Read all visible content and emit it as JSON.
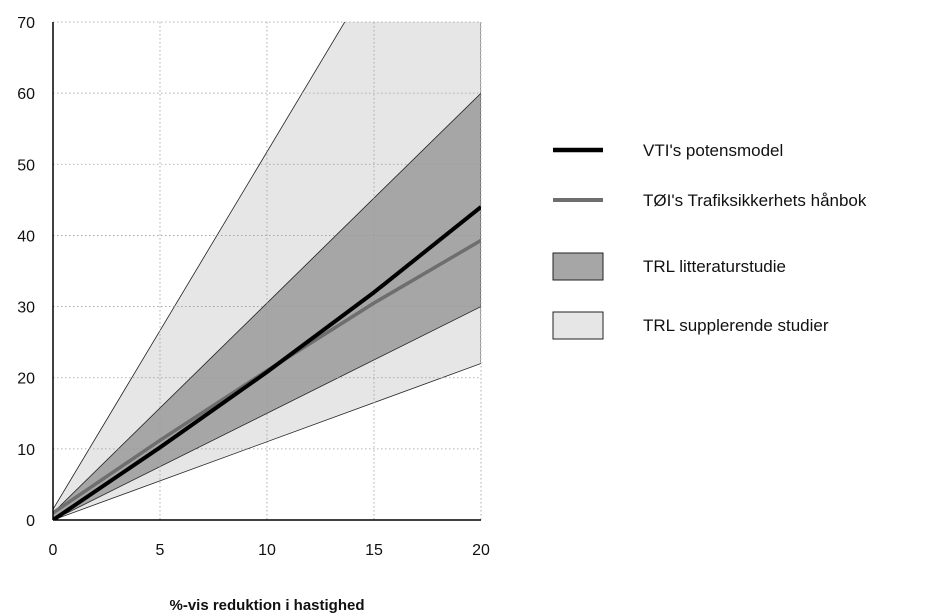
{
  "chart_data": {
    "type": "line",
    "title": "",
    "xlabel": "%-vis reduktion i hastighed",
    "ylabel": "",
    "xlim": [
      0,
      20
    ],
    "ylim": [
      0,
      70
    ],
    "xticks": [
      0,
      5,
      10,
      15,
      20
    ],
    "yticks": [
      0,
      10,
      20,
      30,
      40,
      50,
      60,
      70
    ],
    "grid": true,
    "legend_position": "right",
    "series": [
      {
        "name": "VTI's potensmodel",
        "kind": "line",
        "color": "#000000",
        "x": [
          0,
          5,
          10,
          15,
          20
        ],
        "y": [
          0,
          10.2,
          20.8,
          32,
          44
        ]
      },
      {
        "name": "TØI's Trafiksikkerhets hånbok",
        "kind": "line",
        "color": "#6e6e6e",
        "x": [
          0,
          5,
          10,
          15,
          20
        ],
        "y": [
          1,
          11.2,
          21,
          30.5,
          39.3
        ]
      },
      {
        "name": "TRL litteraturstudie",
        "kind": "band",
        "color": "#a6a6a6",
        "x": [
          0,
          20
        ],
        "lower": [
          0,
          30
        ],
        "upper": [
          1,
          60
        ]
      },
      {
        "name": "TRL supplerende studier",
        "kind": "band",
        "color": "#e6e6e6",
        "x": [
          0,
          20
        ],
        "lower": [
          0,
          22
        ],
        "upper": [
          1.5,
          102
        ]
      }
    ]
  }
}
